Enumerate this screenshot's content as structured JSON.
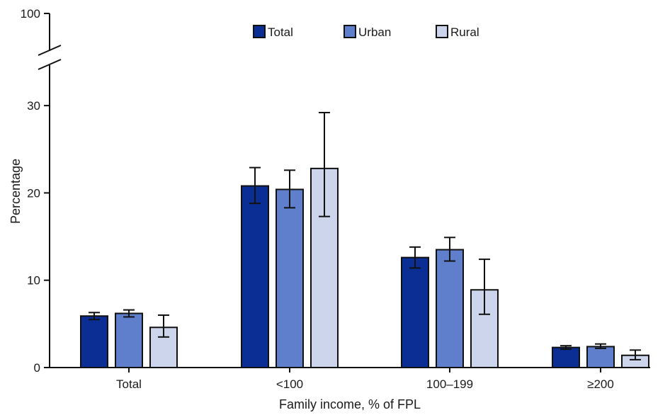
{
  "chart_data": {
    "type": "bar",
    "title": "",
    "xlabel": "Family income, % of FPL",
    "ylabel": "Percentage",
    "categories": [
      "Total",
      "<100",
      "100–199",
      "≥200"
    ],
    "ylim": [
      0,
      100
    ],
    "axis_break": {
      "from": 30,
      "to": 100
    },
    "yticks": [
      0,
      10,
      20,
      30,
      100
    ],
    "legend_position": "top-center",
    "series": [
      {
        "name": "Total",
        "color": "#0b2e94",
        "values": [
          5.9,
          20.8,
          12.6,
          2.3
        ],
        "ci_low": [
          5.5,
          18.8,
          11.4,
          2.1
        ],
        "ci_high": [
          6.3,
          22.9,
          13.8,
          2.5
        ]
      },
      {
        "name": "Urban",
        "color": "#5f7fcc",
        "values": [
          6.2,
          20.4,
          13.5,
          2.4
        ],
        "ci_low": [
          5.8,
          18.3,
          12.2,
          2.2
        ],
        "ci_high": [
          6.6,
          22.6,
          14.9,
          2.7
        ]
      },
      {
        "name": "Rural",
        "color": "#cdd5ed",
        "values": [
          4.6,
          22.8,
          8.9,
          1.4
        ],
        "ci_low": [
          3.5,
          17.3,
          6.1,
          0.9
        ],
        "ci_high": [
          6.0,
          29.2,
          12.4,
          2.0
        ]
      }
    ]
  }
}
